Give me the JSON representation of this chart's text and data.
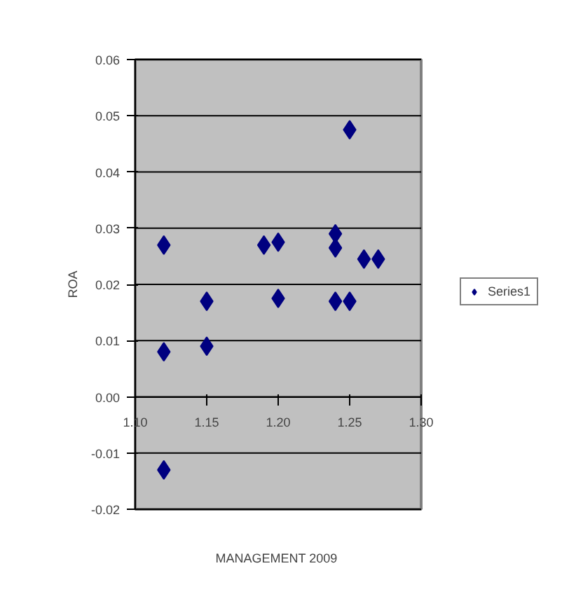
{
  "chart_data": {
    "type": "scatter",
    "xlabel": "MANAGEMENT  2009",
    "ylabel": "ROA",
    "x": [
      1.12,
      1.12,
      1.12,
      1.15,
      1.15,
      1.19,
      1.2,
      1.2,
      1.24,
      1.24,
      1.24,
      1.25,
      1.25,
      1.26,
      1.27
    ],
    "series": [
      {
        "name": "Series1",
        "color": "#000080",
        "values": [
          0.027,
          0.008,
          -0.013,
          0.017,
          0.009,
          0.027,
          0.0275,
          0.0175,
          0.029,
          0.0265,
          0.017,
          0.0475,
          0.017,
          0.0245,
          0.0245
        ]
      }
    ],
    "xlim": [
      1.1,
      1.3
    ],
    "xticks": [
      {
        "value": 1.1,
        "label": "1.10"
      },
      {
        "value": 1.15,
        "label": "1.15"
      },
      {
        "value": 1.2,
        "label": "1.20"
      },
      {
        "value": 1.25,
        "label": "1.25"
      },
      {
        "value": 1.3,
        "label": "1.30"
      }
    ],
    "ylim": [
      -0.02,
      0.06
    ],
    "yticks": [
      {
        "value": -0.02,
        "label": "-0.02"
      },
      {
        "value": -0.01,
        "label": "-0.01"
      },
      {
        "value": 0,
        "label": "0.00"
      },
      {
        "value": 0.01,
        "label": "0.01"
      },
      {
        "value": 0.02,
        "label": "0.02"
      },
      {
        "value": 0.03,
        "label": "0.03"
      },
      {
        "value": 0.04,
        "label": "0.04"
      },
      {
        "value": 0.05,
        "label": "0.05"
      },
      {
        "value": 0.06,
        "label": "0.06"
      }
    ],
    "grid": "y",
    "legend": "right",
    "marker": "diamond"
  }
}
